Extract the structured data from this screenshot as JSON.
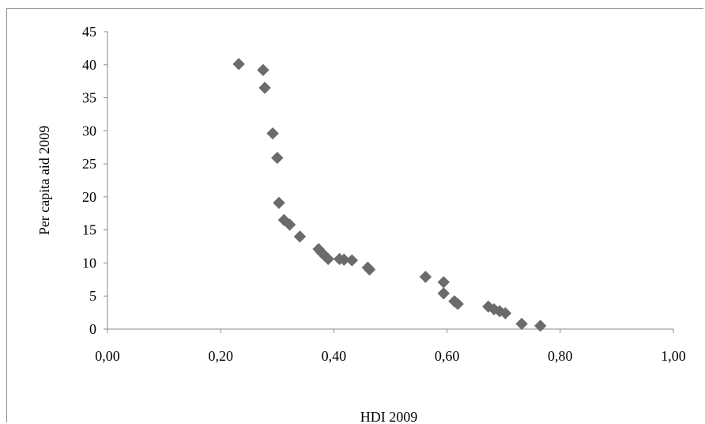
{
  "chart_data": {
    "type": "scatter",
    "title": "",
    "xlabel": "HDI 2009",
    "ylabel": "Per capita aid 2009",
    "xlim": [
      0.0,
      1.0
    ],
    "ylim": [
      0,
      45
    ],
    "x_ticks": [
      "0,00",
      "0,20",
      "0,40",
      "0,60",
      "0,80",
      "1,00"
    ],
    "y_ticks": [
      "0",
      "5",
      "10",
      "15",
      "20",
      "25",
      "30",
      "35",
      "40",
      "45"
    ],
    "grid": false,
    "legend": "none",
    "marker": "diamond",
    "marker_color": "#6b6b6b",
    "axis_color": "#8a8a8a",
    "points": [
      {
        "x": 0.232,
        "y": 40.1
      },
      {
        "x": 0.275,
        "y": 39.2
      },
      {
        "x": 0.278,
        "y": 36.5
      },
      {
        "x": 0.292,
        "y": 29.6
      },
      {
        "x": 0.3,
        "y": 25.9
      },
      {
        "x": 0.303,
        "y": 19.1
      },
      {
        "x": 0.312,
        "y": 16.5
      },
      {
        "x": 0.322,
        "y": 15.8
      },
      {
        "x": 0.34,
        "y": 14.0
      },
      {
        "x": 0.373,
        "y": 12.1
      },
      {
        "x": 0.378,
        "y": 11.6
      },
      {
        "x": 0.384,
        "y": 11.1
      },
      {
        "x": 0.39,
        "y": 10.6
      },
      {
        "x": 0.41,
        "y": 10.6
      },
      {
        "x": 0.418,
        "y": 10.5
      },
      {
        "x": 0.432,
        "y": 10.4
      },
      {
        "x": 0.46,
        "y": 9.3
      },
      {
        "x": 0.463,
        "y": 9.0
      },
      {
        "x": 0.562,
        "y": 7.9
      },
      {
        "x": 0.594,
        "y": 7.1
      },
      {
        "x": 0.594,
        "y": 5.4
      },
      {
        "x": 0.613,
        "y": 4.2
      },
      {
        "x": 0.619,
        "y": 3.8
      },
      {
        "x": 0.673,
        "y": 3.4
      },
      {
        "x": 0.683,
        "y": 3.0
      },
      {
        "x": 0.693,
        "y": 2.7
      },
      {
        "x": 0.703,
        "y": 2.4
      },
      {
        "x": 0.732,
        "y": 0.8
      },
      {
        "x": 0.765,
        "y": 0.5
      }
    ]
  }
}
